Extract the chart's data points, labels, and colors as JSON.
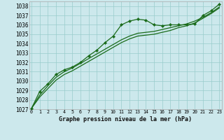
{
  "title": "Graphe pression niveau de la mer (hPa)",
  "bg_color": "#cce8ec",
  "grid_color": "#99cccc",
  "line_color": "#1a6b1a",
  "marker_color": "#1a6b1a",
  "ylim": [
    1027,
    1038.5
  ],
  "xlim": [
    -0.3,
    23.3
  ],
  "yticks": [
    1027,
    1028,
    1029,
    1030,
    1031,
    1032,
    1033,
    1034,
    1035,
    1036,
    1037,
    1038
  ],
  "xticks": [
    0,
    1,
    2,
    3,
    4,
    5,
    6,
    7,
    8,
    9,
    10,
    11,
    12,
    13,
    14,
    15,
    16,
    17,
    18,
    19,
    20,
    21,
    22,
    23
  ],
  "xtick_labels": [
    "0",
    "1",
    "2",
    "3",
    "4",
    "5",
    "6",
    "7",
    "8",
    "9",
    "10",
    "11",
    "12",
    "13",
    "14",
    "15",
    "16",
    "17",
    "18",
    "19",
    "20",
    "21",
    "22",
    "23"
  ],
  "series1_x": [
    0,
    1,
    2,
    3,
    4,
    5,
    6,
    7,
    8,
    9,
    10,
    11,
    12,
    13,
    14,
    15,
    16,
    17,
    18,
    19,
    20,
    21,
    22,
    23
  ],
  "series1_y": [
    1027.1,
    1028.9,
    1029.7,
    1030.7,
    1031.2,
    1031.5,
    1032.0,
    1032.7,
    1033.3,
    1034.1,
    1034.8,
    1036.0,
    1036.4,
    1036.6,
    1036.5,
    1036.0,
    1035.9,
    1036.0,
    1036.0,
    1036.0,
    1036.1,
    1037.0,
    1037.5,
    1038.2
  ],
  "series2_y": [
    1027.1,
    1028.5,
    1029.5,
    1030.4,
    1031.0,
    1031.4,
    1031.9,
    1032.4,
    1032.9,
    1033.4,
    1033.9,
    1034.4,
    1034.8,
    1035.1,
    1035.2,
    1035.3,
    1035.5,
    1035.7,
    1035.9,
    1036.1,
    1036.4,
    1036.8,
    1037.3,
    1037.9
  ],
  "series3_y": [
    1027.1,
    1028.3,
    1029.2,
    1030.1,
    1030.7,
    1031.1,
    1031.6,
    1032.1,
    1032.6,
    1033.1,
    1033.6,
    1034.1,
    1034.5,
    1034.8,
    1034.9,
    1035.0,
    1035.2,
    1035.4,
    1035.7,
    1035.9,
    1036.2,
    1036.7,
    1037.2,
    1037.8
  ]
}
